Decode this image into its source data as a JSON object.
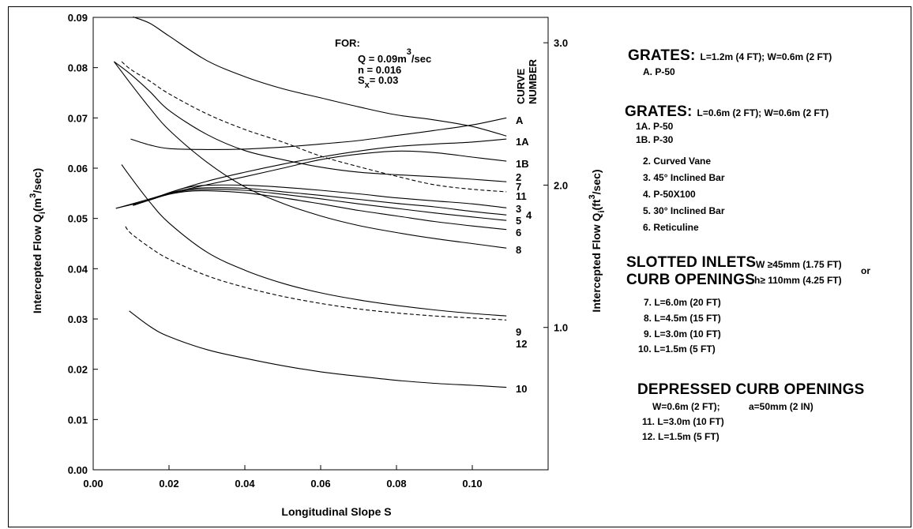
{
  "chart_data": {
    "type": "line",
    "xlabel": "Longitudinal Slope  S",
    "ylabel_left": "Intercepted Flow  Q",
    "ylabel_left_sub": "i",
    "ylabel_left_unit": "(m",
    "ylabel_left_unit2": "/sec)",
    "ylabel_right": "Intercepted Flow  Q",
    "ylabel_right_sub": "i",
    "ylabel_right_unit": "(ft",
    "ylabel_right_unit2": "/sec)",
    "unit_exp": "3",
    "xlim": [
      0.0,
      0.12
    ],
    "ylim": [
      0.0,
      0.09
    ],
    "xticks": [
      "0.00",
      "0.02",
      "0.04",
      "0.06",
      "0.08",
      "0.10"
    ],
    "xtick_values": [
      0.0,
      0.02,
      0.04,
      0.06,
      0.08,
      0.1
    ],
    "yticks": [
      "0.00",
      "0.01",
      "0.02",
      "0.03",
      "0.04",
      "0.05",
      "0.06",
      "0.07",
      "0.08",
      "0.09"
    ],
    "ytick_values": [
      0.0,
      0.01,
      0.02,
      0.03,
      0.04,
      0.05,
      0.06,
      0.07,
      0.08,
      0.09
    ],
    "right_ticks": [
      "3.0",
      "2.0",
      "1.0"
    ],
    "right_tick_values": [
      3.0,
      2.0,
      1.0
    ],
    "right_scale_cfs_per_cms": 35.3147,
    "curve_header": [
      "CURVE",
      "NUMBER"
    ],
    "for_label": "FOR:",
    "for_lines": [
      {
        "var": "Q",
        "text": " = 0.09m",
        "sup": "3",
        "after": "/sec"
      },
      {
        "var": "n",
        "text": " = 0.016",
        "sup": "",
        "after": ""
      },
      {
        "var": "S",
        "sub": "x",
        "text": "= 0.03",
        "sup": "",
        "after": ""
      }
    ],
    "series": [
      {
        "label": "A",
        "dashed": false,
        "x": [
          0.0105,
          0.015,
          0.02,
          0.03,
          0.04,
          0.05,
          0.06,
          0.07,
          0.08,
          0.09,
          0.1,
          0.109
        ],
        "y": [
          0.0901,
          0.0888,
          0.0863,
          0.0814,
          0.0782,
          0.0758,
          0.074,
          0.0722,
          0.0706,
          0.0696,
          0.0683,
          0.0664
        ]
      },
      {
        "label": "1A",
        "dashed": false,
        "x": [
          0.0099,
          0.015,
          0.02,
          0.03,
          0.04,
          0.05,
          0.06,
          0.07,
          0.08,
          0.09,
          0.1,
          0.109
        ],
        "y": [
          0.0658,
          0.0646,
          0.0639,
          0.0637,
          0.0638,
          0.0642,
          0.0648,
          0.0655,
          0.0665,
          0.0675,
          0.0686,
          0.07
        ]
      },
      {
        "label": "1B",
        "dashed": false,
        "x": [
          0.006,
          0.015,
          0.02,
          0.03,
          0.04,
          0.05,
          0.06,
          0.07,
          0.08,
          0.09,
          0.1,
          0.109
        ],
        "y": [
          0.052,
          0.0539,
          0.055,
          0.0567,
          0.0583,
          0.06,
          0.0617,
          0.0628,
          0.0634,
          0.0631,
          0.0622,
          0.0614
        ]
      },
      {
        "label": "2",
        "dashed": false,
        "x": [
          0.006,
          0.015,
          0.02,
          0.03,
          0.04,
          0.05,
          0.06,
          0.07,
          0.08,
          0.09,
          0.1,
          0.109
        ],
        "y": [
          0.052,
          0.0537,
          0.0551,
          0.0574,
          0.0592,
          0.0608,
          0.0622,
          0.0634,
          0.0643,
          0.0648,
          0.0652,
          0.0658
        ]
      },
      {
        "label": "7",
        "dashed": false,
        "x": [
          0.0055,
          0.01,
          0.015,
          0.02,
          0.03,
          0.04,
          0.05,
          0.06,
          0.07,
          0.08,
          0.09,
          0.1,
          0.109
        ],
        "y": [
          0.0812,
          0.0786,
          0.0752,
          0.0715,
          0.0667,
          0.0635,
          0.0617,
          0.0602,
          0.0592,
          0.0587,
          0.0583,
          0.0578,
          0.0573
        ]
      },
      {
        "label": "11",
        "dashed": true,
        "x": [
          0.0075,
          0.01,
          0.015,
          0.02,
          0.03,
          0.04,
          0.05,
          0.06,
          0.07,
          0.08,
          0.09,
          0.1,
          0.109
        ],
        "y": [
          0.0812,
          0.0796,
          0.0773,
          0.0748,
          0.0708,
          0.0677,
          0.0652,
          0.0624,
          0.0603,
          0.0584,
          0.0567,
          0.0558,
          0.0553
        ]
      },
      {
        "label": "3",
        "dashed": false,
        "x": [
          0.0105,
          0.015,
          0.02,
          0.025,
          0.03,
          0.04,
          0.05,
          0.06,
          0.07,
          0.08,
          0.09,
          0.1,
          0.109
        ],
        "y": [
          0.0526,
          0.0537,
          0.0551,
          0.0562,
          0.0566,
          0.0566,
          0.0562,
          0.0556,
          0.0549,
          0.0541,
          0.0535,
          0.0529,
          0.0521
        ]
      },
      {
        "label": "4",
        "dashed": false,
        "x": [
          0.0105,
          0.015,
          0.02,
          0.025,
          0.03,
          0.04,
          0.05,
          0.06,
          0.07,
          0.08,
          0.09,
          0.1,
          0.109
        ],
        "y": [
          0.0526,
          0.0537,
          0.0549,
          0.0558,
          0.0561,
          0.056,
          0.0553,
          0.0546,
          0.0538,
          0.053,
          0.0523,
          0.0514,
          0.0507
        ]
      },
      {
        "label": "5",
        "dashed": false,
        "x": [
          0.0105,
          0.015,
          0.02,
          0.025,
          0.03,
          0.04,
          0.05,
          0.06,
          0.07,
          0.08,
          0.09,
          0.1,
          0.109
        ],
        "y": [
          0.0526,
          0.0537,
          0.0549,
          0.0556,
          0.0558,
          0.0556,
          0.0548,
          0.0539,
          0.0529,
          0.052,
          0.0511,
          0.0503,
          0.0496
        ]
      },
      {
        "label": "6",
        "dashed": false,
        "x": [
          0.0105,
          0.015,
          0.02,
          0.025,
          0.03,
          0.04,
          0.05,
          0.06,
          0.07,
          0.08,
          0.09,
          0.1,
          0.109
        ],
        "y": [
          0.0526,
          0.0537,
          0.0548,
          0.0554,
          0.0555,
          0.0551,
          0.0541,
          0.0529,
          0.0516,
          0.0505,
          0.0494,
          0.0485,
          0.0478
        ]
      },
      {
        "label": "8",
        "dashed": false,
        "x": [
          0.0055,
          0.01,
          0.015,
          0.02,
          0.03,
          0.04,
          0.05,
          0.06,
          0.07,
          0.08,
          0.09,
          0.1,
          0.109
        ],
        "y": [
          0.0812,
          0.0767,
          0.0719,
          0.0676,
          0.0612,
          0.0563,
          0.053,
          0.0505,
          0.0486,
          0.0472,
          0.046,
          0.045,
          0.0441
        ]
      },
      {
        "label": "9",
        "dashed": false,
        "x": [
          0.0075,
          0.01,
          0.015,
          0.02,
          0.03,
          0.04,
          0.05,
          0.06,
          0.07,
          0.08,
          0.09,
          0.1,
          0.109
        ],
        "y": [
          0.0607,
          0.0581,
          0.0532,
          0.0491,
          0.0433,
          0.0397,
          0.0371,
          0.0352,
          0.0338,
          0.0327,
          0.0318,
          0.0311,
          0.0306
        ]
      },
      {
        "label": "12",
        "dashed": true,
        "x": [
          0.0085,
          0.01,
          0.015,
          0.02,
          0.03,
          0.04,
          0.05,
          0.06,
          0.07,
          0.08,
          0.09,
          0.1,
          0.109
        ],
        "y": [
          0.0484,
          0.047,
          0.0442,
          0.0419,
          0.0386,
          0.0363,
          0.0345,
          0.0331,
          0.032,
          0.0312,
          0.0306,
          0.0302,
          0.0298
        ]
      },
      {
        "label": "10",
        "dashed": false,
        "x": [
          0.0095,
          0.015,
          0.02,
          0.03,
          0.04,
          0.05,
          0.06,
          0.07,
          0.08,
          0.09,
          0.1,
          0.109
        ],
        "y": [
          0.0316,
          0.0285,
          0.0265,
          0.0239,
          0.0222,
          0.0207,
          0.0195,
          0.0186,
          0.0178,
          0.0172,
          0.0168,
          0.0164
        ]
      }
    ]
  },
  "legend": {
    "grates_a": {
      "title": "GRATES:",
      "spec": "L=1.2m (4 FT);  W=0.6m (2 FT)",
      "items": [
        "A. P-50"
      ]
    },
    "grates_b": {
      "title": "GRATES:",
      "spec": "L=0.6m (2 FT);  W=0.6m (2 FT)",
      "items": [
        "1A. P-50",
        "1B. P-30",
        "2. Curved Vane",
        "3. 45° Inclined Bar",
        "4. P-50X100",
        "5. 30° Inclined Bar",
        "6. Reticuline"
      ]
    },
    "slotted": {
      "title1": "SLOTTED INLETS",
      "title2": "CURB OPENINGS",
      "cond1": "W ≥45mm (1.75 FT)",
      "cond_or": "or",
      "cond2": "h≥ 110mm (4.25 FT)",
      "items": [
        "7. L=6.0m (20 FT)",
        "8. L=4.5m (15 FT)",
        "9. L=3.0m (10 FT)",
        "10. L=1.5m (5 FT)"
      ]
    },
    "depressed": {
      "title": "DEPRESSED CURB OPENINGS",
      "spec_w": "W=0.6m (2 FT);",
      "spec_a": "a=50mm (2 IN)",
      "items": [
        "11. L=3.0m (10 FT)",
        "12. L=1.5m (5 FT)"
      ]
    }
  }
}
